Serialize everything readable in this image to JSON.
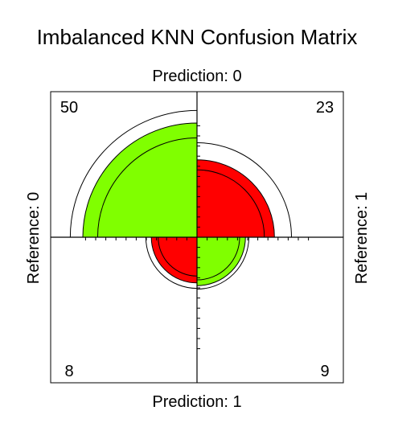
{
  "chart_data": {
    "type": "fourfold",
    "title": "Imbalanced KNN Confusion Matrix",
    "top_label": "Prediction: 0",
    "bottom_label": "Prediction: 1",
    "left_label": "Reference: 0",
    "right_label": "Reference: 1",
    "cells": [
      {
        "name": "prediction-0-reference-0",
        "prediction": "0",
        "reference": "0",
        "count": 50,
        "quadrant": "top-left",
        "color": "#80ff00"
      },
      {
        "name": "prediction-0-reference-1",
        "prediction": "0",
        "reference": "1",
        "count": 23,
        "quadrant": "top-right",
        "color": "#ff0000"
      },
      {
        "name": "prediction-1-reference-0",
        "prediction": "1",
        "reference": "0",
        "count": 8,
        "quadrant": "bottom-left",
        "color": "#ff0000"
      },
      {
        "name": "prediction-1-reference-1",
        "prediction": "1",
        "reference": "1",
        "count": 9,
        "quadrant": "bottom-right",
        "color": "#80ff00"
      }
    ],
    "grid": false,
    "confidence_rings": true
  }
}
